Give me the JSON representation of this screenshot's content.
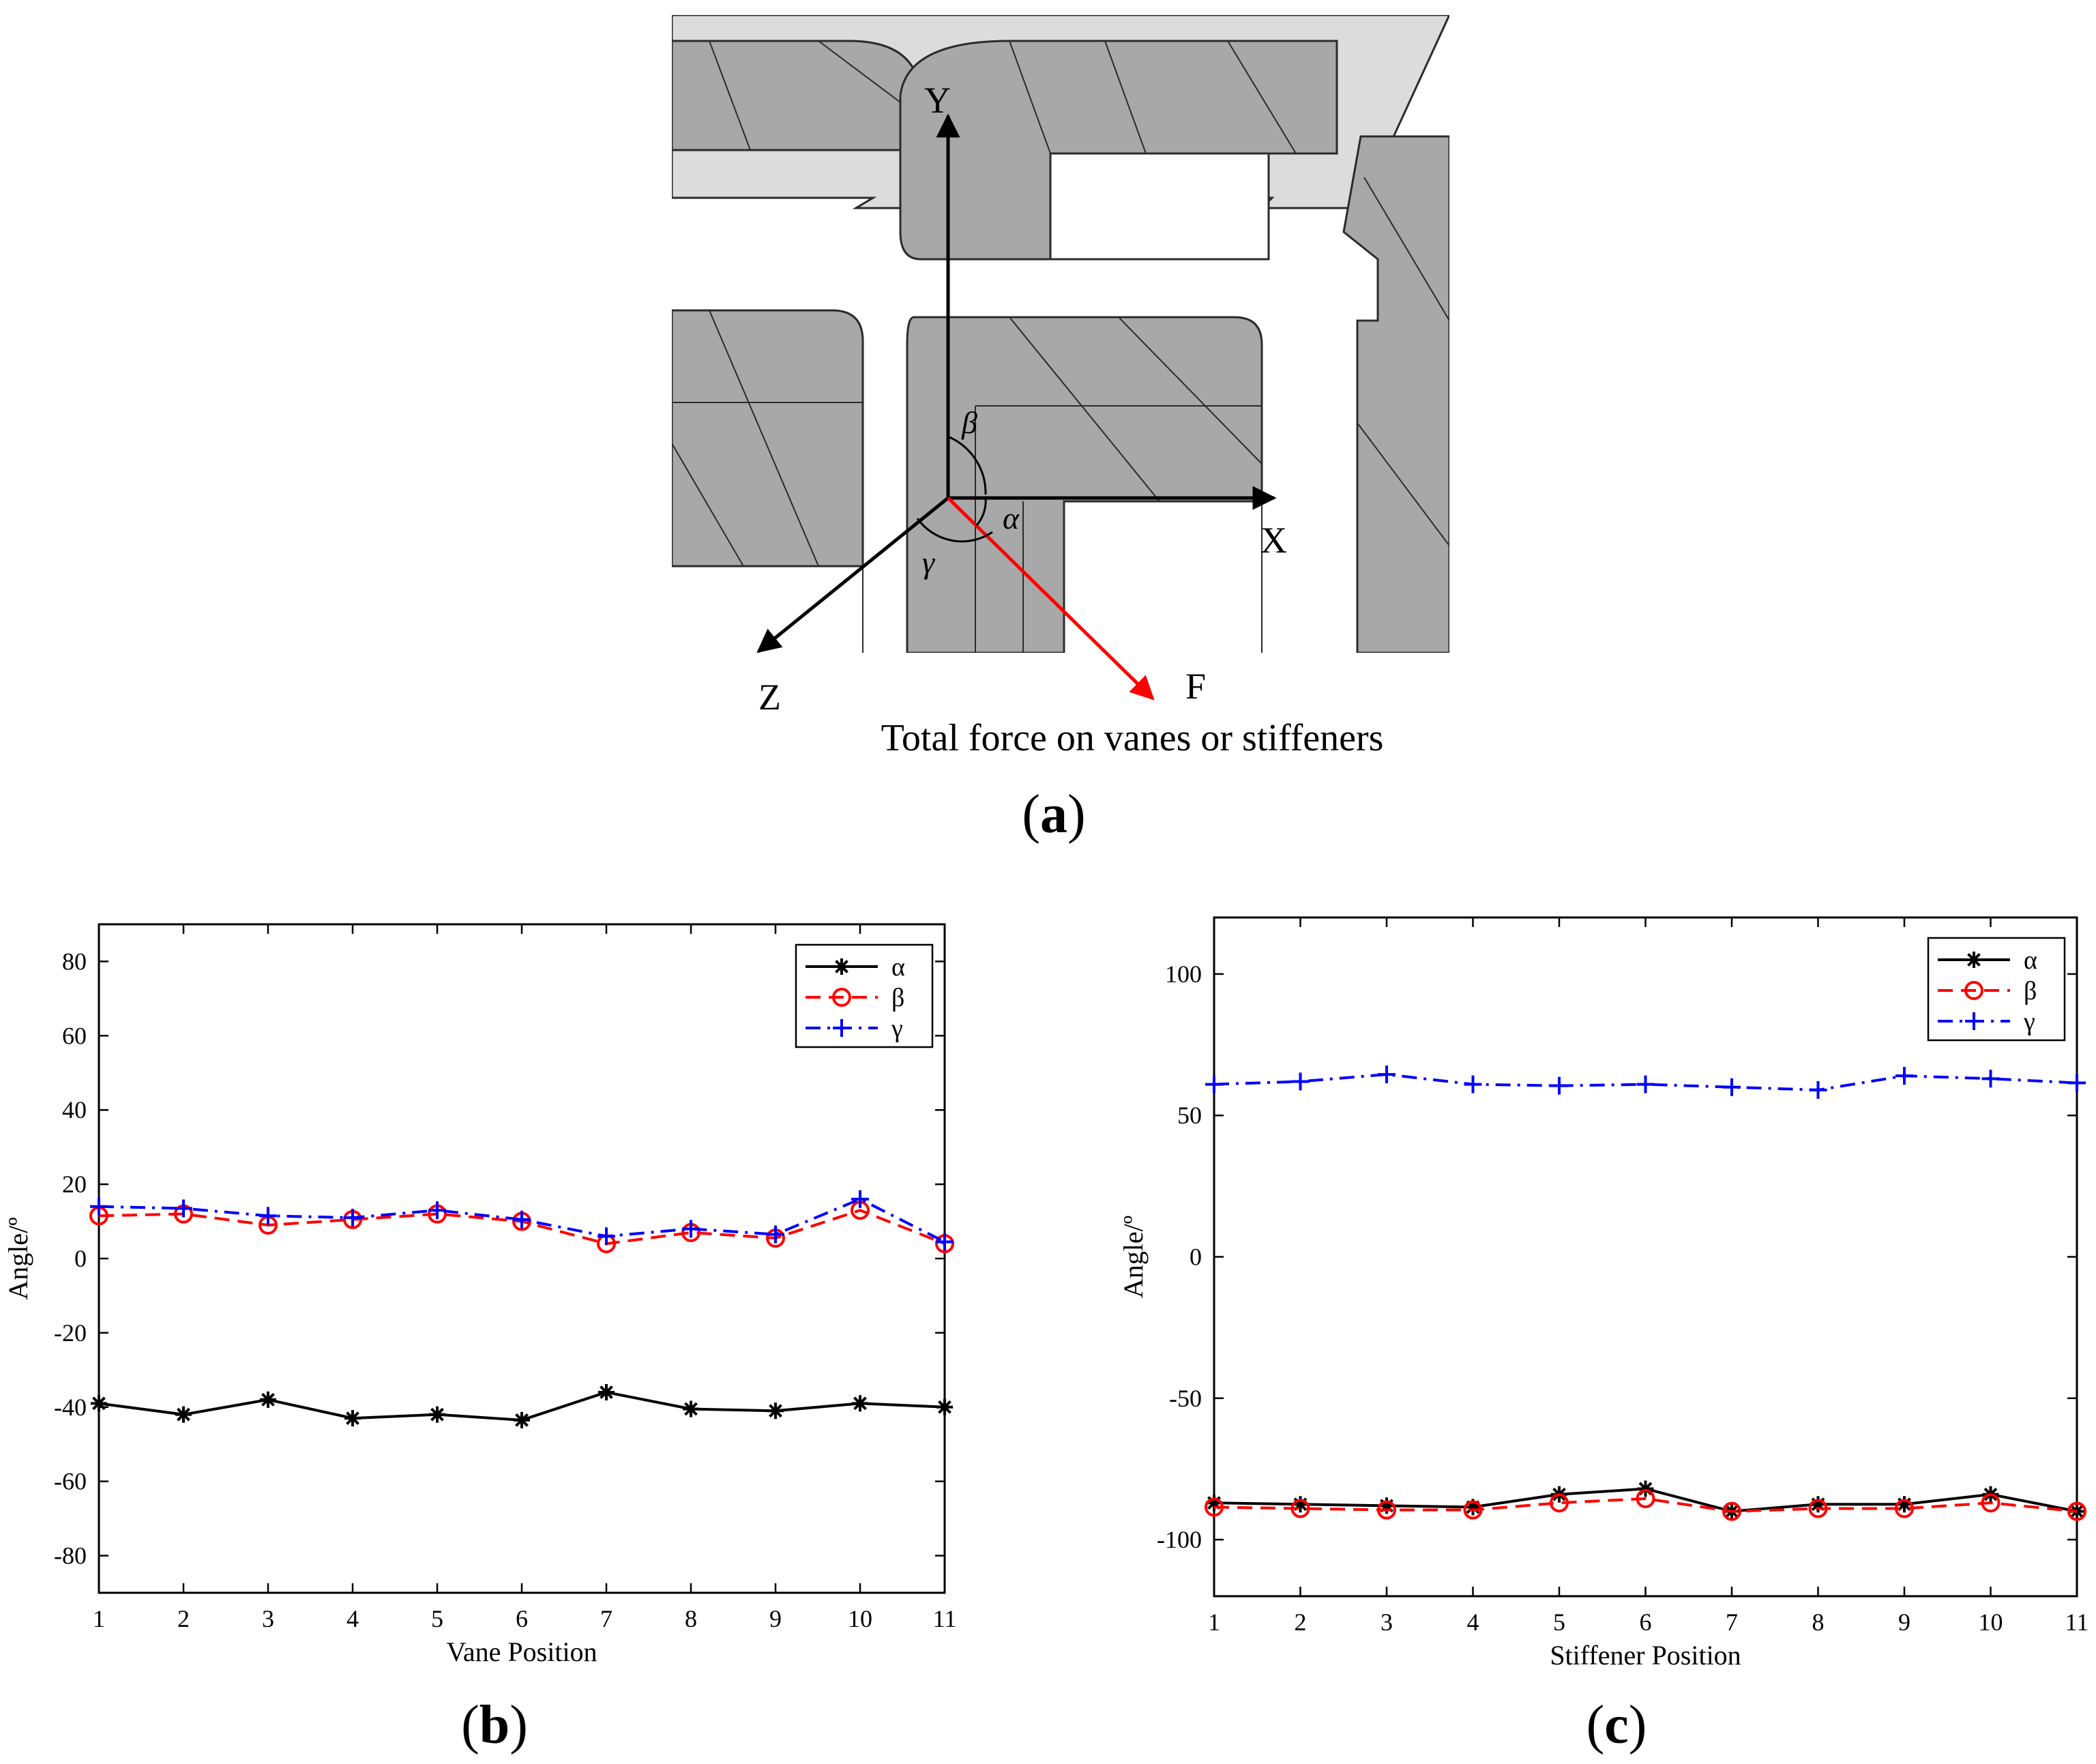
{
  "colors": {
    "alpha": "#000000",
    "beta": "#ff0000",
    "gamma": "#0000ff",
    "force": "#ff0000",
    "vane_fill": "#a9a9a9",
    "vane_dark": "#8c8c8c",
    "plate_fill": "#d9d9d9",
    "outline": "#2b2b2b"
  },
  "panel_a": {
    "axis_labels": {
      "y": "Y",
      "x": "X",
      "z": "Z",
      "f": "F"
    },
    "angle_labels": {
      "alpha": "α",
      "beta": "β",
      "gamma": "γ"
    },
    "caption": "Total force on vanes or stiffeners",
    "label": "a"
  },
  "panel_b": {
    "label": "b"
  },
  "panel_c": {
    "label": "c"
  },
  "chart_data": [
    {
      "type": "line",
      "xlabel": "Vane Position",
      "ylabel": "Angle/º",
      "x": [
        1,
        2,
        3,
        4,
        5,
        6,
        7,
        8,
        9,
        10,
        11
      ],
      "xticks": [
        1,
        2,
        3,
        4,
        5,
        6,
        7,
        8,
        9,
        10,
        11
      ],
      "xlim": [
        1,
        11
      ],
      "ylim": [
        -90,
        90
      ],
      "yticks": [
        -80,
        -60,
        -40,
        -20,
        0,
        20,
        40,
        60,
        80
      ],
      "legend_position": "top-right",
      "series": [
        {
          "name": "α",
          "color": "#000000",
          "line": "solid",
          "marker": "asterisk",
          "values": [
            -39,
            -42,
            -38,
            -43,
            -42,
            -43.5,
            -36,
            -40.5,
            -41,
            -39,
            -40
          ]
        },
        {
          "name": "β",
          "color": "#ff0000",
          "line": "dashed",
          "marker": "circle",
          "values": [
            11.5,
            12,
            9,
            10.5,
            12,
            10,
            4,
            7,
            5.5,
            13,
            4
          ]
        },
        {
          "name": "γ",
          "color": "#0000ff",
          "line": "dashdot",
          "marker": "plus",
          "values": [
            14,
            13.5,
            11.5,
            11,
            13,
            10.5,
            6,
            8,
            6.5,
            16,
            4.5
          ]
        }
      ]
    },
    {
      "type": "line",
      "xlabel": "Stiffener Position",
      "ylabel": "Angle/º",
      "x": [
        1,
        2,
        3,
        4,
        5,
        6,
        7,
        8,
        9,
        10,
        11
      ],
      "xticks": [
        1,
        2,
        3,
        4,
        5,
        6,
        7,
        8,
        9,
        10,
        11
      ],
      "xlim": [
        1,
        11
      ],
      "ylim": [
        -120,
        120
      ],
      "yticks": [
        -100,
        -50,
        0,
        50,
        100
      ],
      "legend_position": "top-right",
      "series": [
        {
          "name": "α",
          "color": "#000000",
          "line": "solid",
          "marker": "asterisk",
          "values": [
            -87,
            -87.5,
            -88,
            -88.5,
            -84,
            -82,
            -90,
            -87.5,
            -87.5,
            -84,
            -90
          ]
        },
        {
          "name": "β",
          "color": "#ff0000",
          "line": "dashed",
          "marker": "circle",
          "values": [
            -88.5,
            -89,
            -89.5,
            -89.5,
            -87,
            -85.5,
            -90,
            -89,
            -89,
            -87,
            -90
          ]
        },
        {
          "name": "γ",
          "color": "#0000ff",
          "line": "dashdot",
          "marker": "plus",
          "values": [
            61,
            62,
            64.5,
            61,
            60.5,
            61,
            60,
            59,
            64,
            63,
            61.5
          ]
        }
      ]
    }
  ]
}
